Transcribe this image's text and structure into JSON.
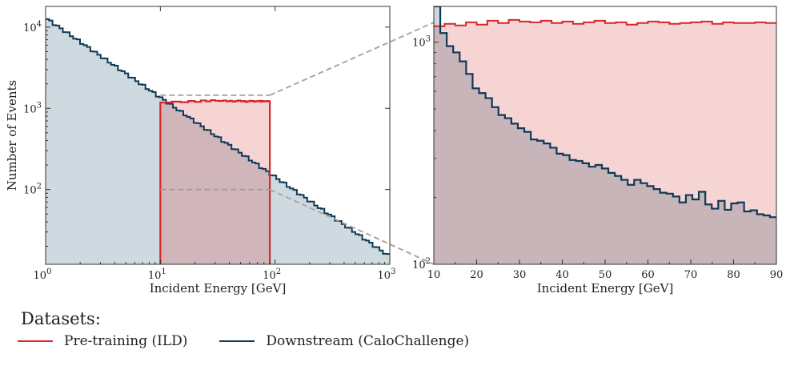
{
  "chart_data": [
    {
      "type": "histogram",
      "panel": "left",
      "xscale": "log",
      "yscale": "log",
      "xlim": [
        1,
        1000
      ],
      "ylim": [
        12,
        18000
      ],
      "xlabel": "Incident Energy [GeV]",
      "ylabel": "Number of Events",
      "xticks": [
        {
          "v": 1,
          "base": "10",
          "exp": "0"
        },
        {
          "v": 10,
          "base": "10",
          "exp": "1"
        },
        {
          "v": 100,
          "base": "10",
          "exp": "2"
        },
        {
          "v": 1000,
          "base": "10",
          "exp": "3"
        }
      ],
      "yticks": [
        {
          "v": 100,
          "base": "10",
          "exp": "2"
        },
        {
          "v": 1000,
          "base": "10",
          "exp": "3"
        },
        {
          "v": 10000,
          "base": "10",
          "exp": "4"
        }
      ],
      "series": [
        {
          "name": "Downstream (CaloChallenge)",
          "color": "#0e3a55",
          "fill": "#cfd9e0",
          "kind": "power-law",
          "x_range": [
            1,
            1000
          ],
          "y_start": 13000,
          "y_end": 15,
          "bins": 100
        },
        {
          "name": "Pre-training (ILD)",
          "color": "#d62728",
          "fill": "rgba(214,39,40,0.20)",
          "kind": "flat",
          "x_range": [
            10,
            90
          ],
          "values": [
            1180,
            1210,
            1190,
            1230,
            1200,
            1250,
            1220,
            1260,
            1240,
            1230,
            1250,
            1220,
            1240,
            1210,
            1230,
            1250,
            1220,
            1230,
            1200,
            1220,
            1240,
            1230,
            1210,
            1220,
            1230,
            1240,
            1210,
            1230,
            1220,
            1220,
            1230,
            1220
          ]
        }
      ],
      "zoom_box": {
        "x_range": [
          10,
          90
        ],
        "y_range": [
          100,
          1450
        ]
      }
    },
    {
      "type": "histogram",
      "panel": "right",
      "xscale": "linear",
      "yscale": "log",
      "xlim": [
        10,
        90
      ],
      "ylim": [
        100,
        1450
      ],
      "xlabel": "Incident Energy [GeV]",
      "xticks": [
        "10",
        "20",
        "30",
        "40",
        "50",
        "60",
        "70",
        "80",
        "90"
      ],
      "yticks": [
        {
          "v": 100,
          "base": "10",
          "exp": "2"
        },
        {
          "v": 1000,
          "base": "10",
          "exp": "3"
        }
      ],
      "series": [
        {
          "name": "Pre-training (ILD)",
          "color": "#d62728",
          "fill": "rgba(214,39,40,0.20)",
          "x_range": [
            10,
            90
          ],
          "values": [
            1180,
            1210,
            1190,
            1230,
            1200,
            1250,
            1220,
            1260,
            1240,
            1230,
            1250,
            1220,
            1240,
            1210,
            1230,
            1250,
            1220,
            1230,
            1200,
            1220,
            1240,
            1230,
            1210,
            1220,
            1230,
            1240,
            1210,
            1230,
            1220,
            1220,
            1230,
            1220
          ]
        },
        {
          "name": "Downstream (CaloChallenge)",
          "color": "#0e3a55",
          "fill": "rgba(14,58,85,0.20)",
          "x_range": [
            10,
            90
          ],
          "values": [
            1450,
            1100,
            960,
            900,
            820,
            720,
            620,
            590,
            560,
            510,
            470,
            455,
            430,
            410,
            395,
            365,
            360,
            350,
            335,
            315,
            310,
            295,
            292,
            285,
            275,
            280,
            270,
            258,
            250,
            240,
            228,
            240,
            232,
            225,
            218,
            210,
            208,
            202,
            190,
            205,
            196,
            212,
            186,
            178,
            193,
            176,
            188,
            190,
            173,
            175,
            168,
            166,
            163
          ]
        }
      ]
    }
  ],
  "legend": {
    "title": "Datasets:",
    "items": [
      {
        "label": "Pre-training (ILD)",
        "color": "#d62728"
      },
      {
        "label": "Downstream (CaloChallenge)",
        "color": "#0e3a55"
      }
    ]
  }
}
